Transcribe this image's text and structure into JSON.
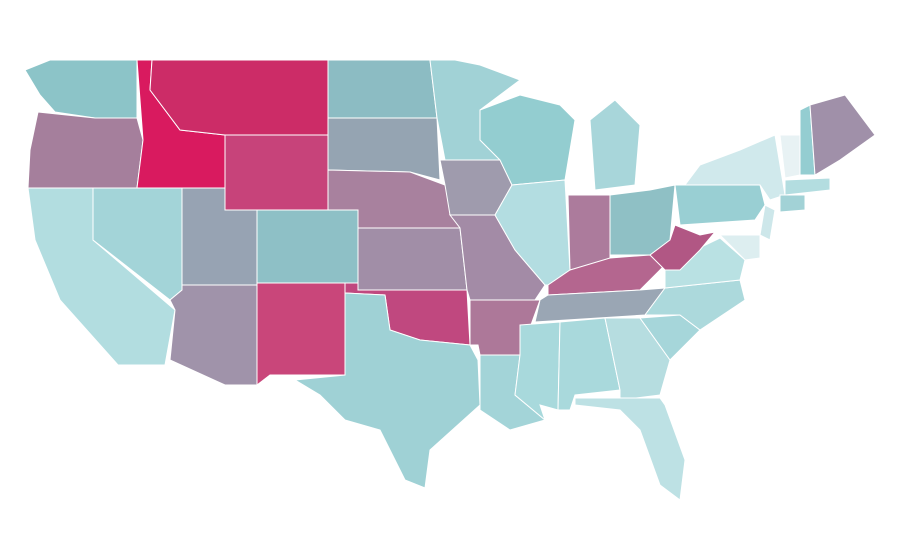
{
  "map": {
    "stroke": "#ffffff",
    "regions": [
      {
        "color": "#8cc4c8"
      },
      {
        "color": "#a57f9c"
      },
      {
        "color": "#d91a5f"
      },
      {
        "color": "#cc2c67"
      },
      {
        "color": "#c7437a"
      },
      {
        "color": "#b2dde0"
      },
      {
        "color": "#a3d4d8"
      },
      {
        "color": "#97a3b3"
      },
      {
        "color": "#a093aa"
      },
      {
        "color": "#8ec0c6"
      },
      {
        "color": "#c9467a"
      },
      {
        "color": "#8cbcc3"
      },
      {
        "color": "#95a4b2"
      },
      {
        "color": "#a8819e"
      },
      {
        "color": "#a18ea7"
      },
      {
        "color": "#c0487f"
      },
      {
        "color": "#9fd1d5"
      },
      {
        "color": "#a1d2d6"
      },
      {
        "color": "#9f9bad"
      },
      {
        "color": "#a38ba6"
      },
      {
        "color": "#ad7899"
      },
      {
        "color": "#a3d4d8"
      },
      {
        "color": "#93cdd0"
      },
      {
        "color": "#b3dde1"
      },
      {
        "color": "#a8d6da"
      },
      {
        "color": "#ac7b9c"
      },
      {
        "color": "#8fc0c5"
      },
      {
        "color": "#b4668f"
      },
      {
        "color": "#9aa6b4"
      },
      {
        "color": "#a8d9dc"
      },
      {
        "color": "#a9d9dc"
      },
      {
        "color": "#b6dde0"
      },
      {
        "color": "#bde1e4"
      },
      {
        "color": "#a6d6da"
      },
      {
        "color": "#acd9dc"
      },
      {
        "color": "#b9e1e3"
      },
      {
        "color": "#b15784"
      },
      {
        "color": "#99cfd3"
      },
      {
        "color": "#d0e9ec"
      },
      {
        "color": "#e8f2f4"
      },
      {
        "color": "#94cdd1"
      },
      {
        "color": "#a090a9"
      },
      {
        "color": "#b3dde0"
      },
      {
        "color": "#a2d2d6"
      },
      {
        "color": "#cde7ea"
      },
      {
        "color": "#ddeef0"
      }
    ]
  }
}
